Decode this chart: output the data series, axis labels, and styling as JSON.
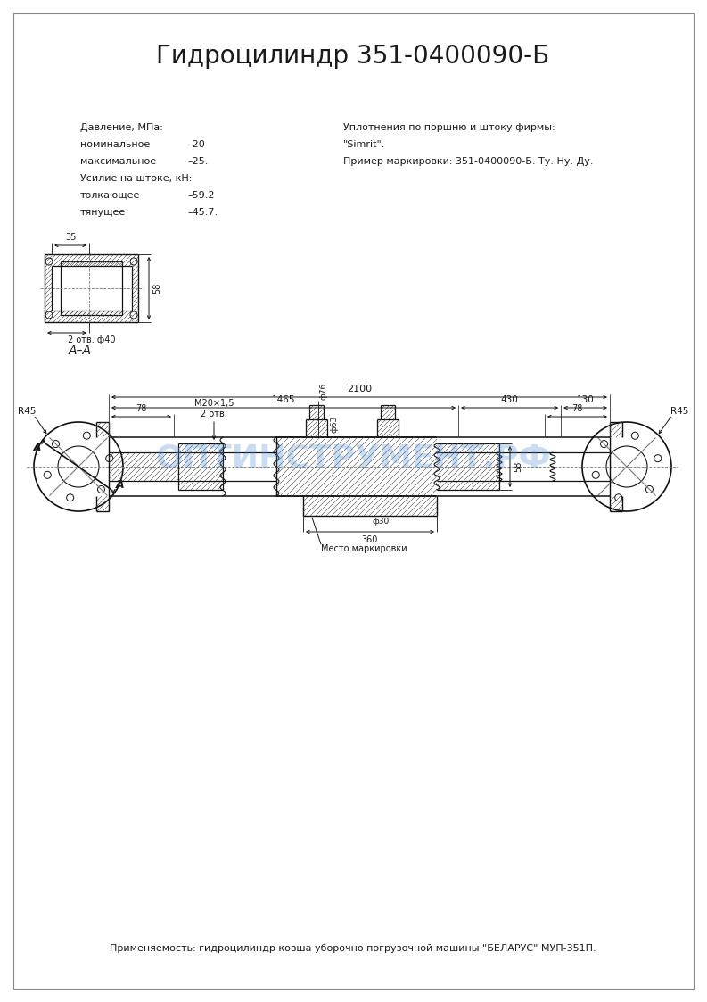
{
  "title": "Гидроцилиндр 351-0400090-Б",
  "title_fontsize": 20,
  "bg_color": "#ffffff",
  "text_color": "#1a1a1a",
  "line_color": "#111111",
  "watermark": "ОПТИНСТРУМЕНТ.РФ",
  "watermark_color": "#4a90d9",
  "watermark_alpha": 0.3,
  "bottom_text": "Применяемость: гидроцилиндр ковша уборочно погрузочной машины \"БЕЛАРУС\" МУП-351П.",
  "dim_2100": "2100",
  "dim_1465": "1465",
  "dim_430": "430",
  "dim_130": "130",
  "dim_78_left": "78",
  "dim_78_right": "78",
  "dim_360": "360",
  "dim_R45_left": "R45",
  "dim_R45_right": "R45",
  "dim_M20": "М20×1,5\n2 отв.",
  "dim_phi76": "ф76",
  "dim_phi63": "ф63",
  "dim_phi30": "ф30",
  "dim_58": "58",
  "dim_35": "35",
  "mesto": "Место маркировки",
  "label_A": "А",
  "label_AA": "А–А"
}
